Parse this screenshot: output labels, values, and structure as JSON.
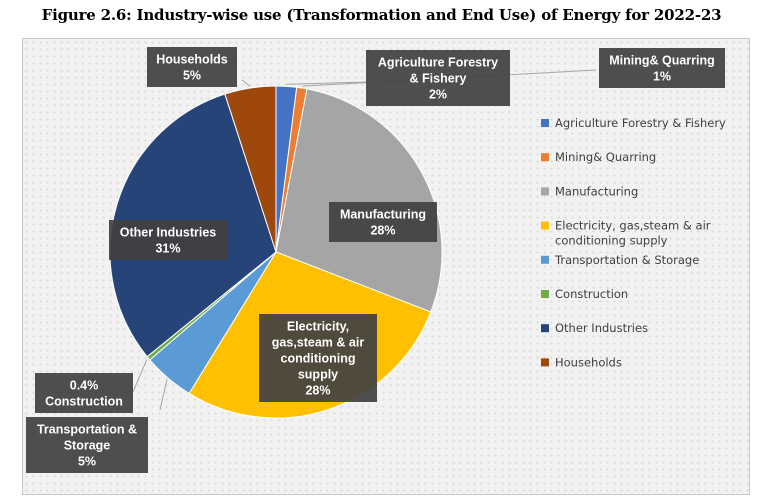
{
  "title": "Figure 2.6: Industry-wise use (Transformation and End Use) of Energy for 2022-23",
  "chart_data": {
    "type": "pie",
    "slices": [
      {
        "name": "Agriculture Forestry & Fishery",
        "value": 2,
        "color": "#4472c4",
        "label_lines": [
          "Agriculture Forestry",
          "& Fishery",
          "2%"
        ]
      },
      {
        "name": "Mining& Quarring",
        "value": 1,
        "color": "#ed7d31",
        "label_lines": [
          "Mining& Quarring",
          "1%"
        ]
      },
      {
        "name": "Manufacturing",
        "value": 28,
        "color": "#a5a5a5",
        "label_lines": [
          "Manufacturing",
          "28%"
        ]
      },
      {
        "name": "Electricity, gas,steam & air conditioning supply",
        "value": 28,
        "color": "#ffc000",
        "label_lines": [
          "Electricity,",
          "gas,steam & air",
          "conditioning",
          "supply",
          "28%"
        ]
      },
      {
        "name": "Transportation & Storage",
        "value": 5,
        "color": "#5b9bd5",
        "label_lines": [
          "Transportation &",
          "Storage",
          "5%"
        ]
      },
      {
        "name": "Construction",
        "value": 0.4,
        "color": "#70ad47",
        "label_lines": [
          "0.4%",
          "Construction"
        ]
      },
      {
        "name": "Other Industries",
        "value": 31,
        "color": "#264478",
        "label_lines": [
          "Other Industries",
          "31%"
        ]
      },
      {
        "name": "Households",
        "value": 5,
        "color": "#9e480e",
        "label_lines": [
          "Households",
          "5%"
        ]
      }
    ],
    "legend": {
      "position": "right",
      "entries": [
        {
          "lines": [
            "Agriculture Forestry & Fishery"
          ],
          "color": "#4472c4"
        },
        {
          "lines": [
            "Mining& Quarring"
          ],
          "color": "#ed7d31"
        },
        {
          "lines": [
            "Manufacturing"
          ],
          "color": "#a5a5a5"
        },
        {
          "lines": [
            "Electricity, gas,steam & air",
            "conditioning supply"
          ],
          "color": "#ffc000"
        },
        {
          "lines": [
            "Transportation & Storage"
          ],
          "color": "#5b9bd5"
        },
        {
          "lines": [
            "Construction"
          ],
          "color": "#70ad47"
        },
        {
          "lines": [
            "Other Industries"
          ],
          "color": "#264478"
        },
        {
          "lines": [
            "Households"
          ],
          "color": "#9e480e"
        }
      ]
    }
  }
}
